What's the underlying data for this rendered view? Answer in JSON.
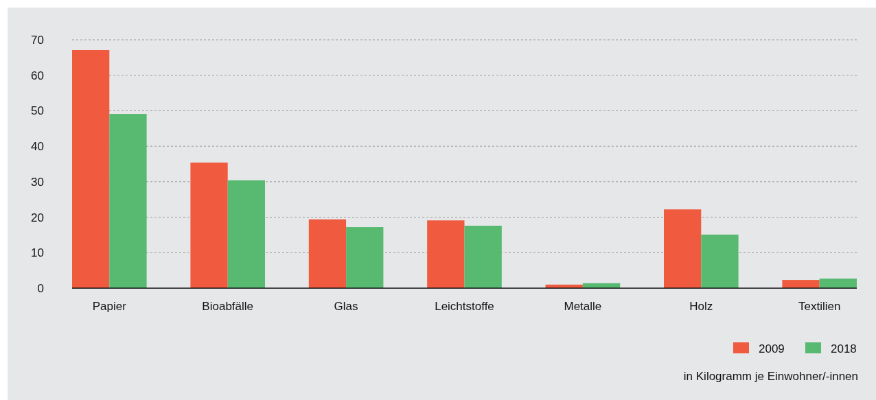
{
  "chart_data": {
    "type": "bar",
    "categories": [
      "Papier",
      "Bioabfälle",
      "Glas",
      "Leichtstoffe",
      "Metalle",
      "Holz",
      "Textilien"
    ],
    "series": [
      {
        "name": "2009",
        "color": "#f05a3e",
        "values": [
          67.1,
          35.4,
          19.4,
          19.1,
          1.0,
          22.2,
          2.3
        ]
      },
      {
        "name": "2018",
        "color": "#58b971",
        "values": [
          49.1,
          30.4,
          17.2,
          17.6,
          1.4,
          15.1,
          2.7
        ]
      }
    ],
    "ylim": [
      0,
      70
    ],
    "yticks": [
      0,
      10,
      20,
      30,
      40,
      50,
      60,
      70
    ],
    "grid": "y",
    "legend": "bottom right",
    "annotations": [
      "in Kilogramm je Einwohner/-innen"
    ]
  }
}
